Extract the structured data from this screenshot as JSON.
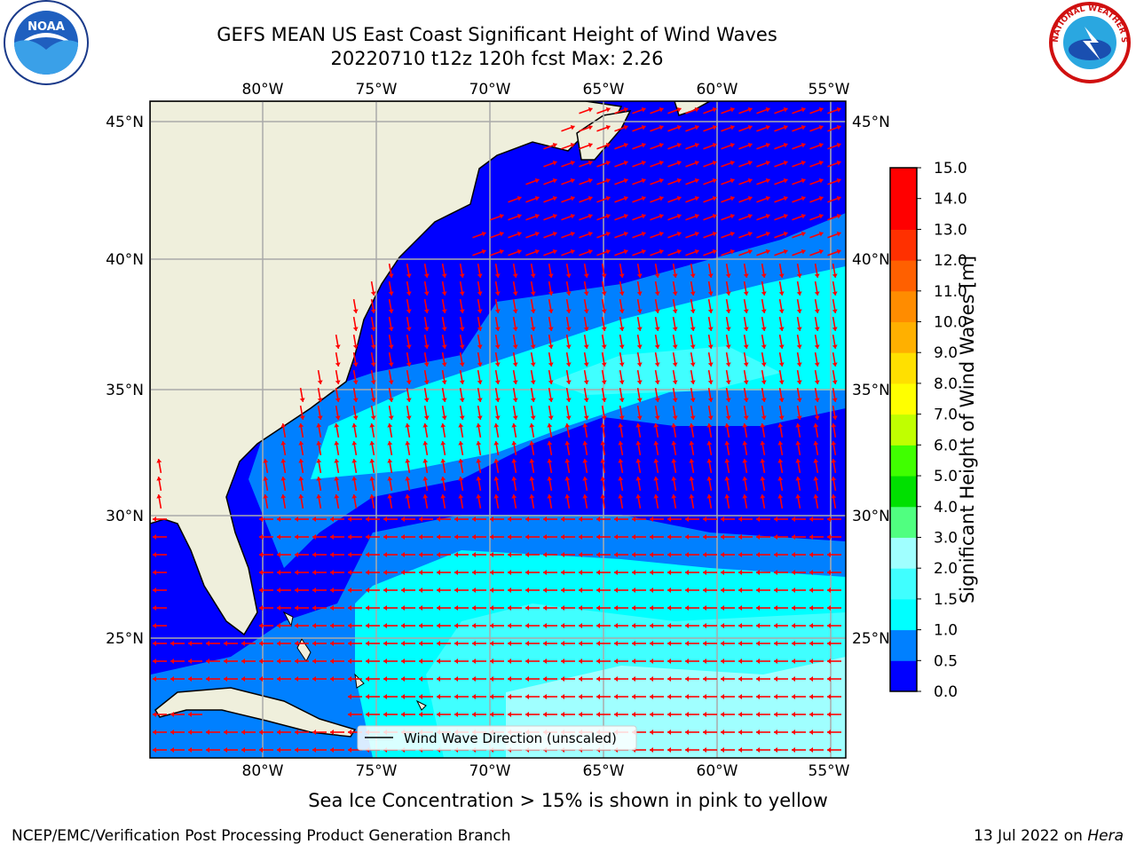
{
  "title_line1": "GEFS MEAN US East Coast Significant Height of Wind Waves",
  "title_line2": "20220710 t12z 120h fcst    Max: 2.26",
  "logos": {
    "left": "noaa-logo",
    "right": "national-weather-service-logo"
  },
  "logo_text": {
    "noaa": "NOAA",
    "nws": "NATIONAL WEATHER SERVICE"
  },
  "map": {
    "lon_ticks": [
      "80°W",
      "75°W",
      "70°W",
      "65°W",
      "60°W",
      "55°W"
    ],
    "lat_ticks": [
      "45°N",
      "40°N",
      "35°N",
      "30°N",
      "25°N"
    ],
    "lon_range": [
      -85,
      -54.5
    ],
    "lat_range": [
      20.5,
      46
    ],
    "grid": true,
    "land_color": "#efefdc",
    "legend_label": "Wind Wave Direction (unscaled)",
    "arrow_color": "#ff0000"
  },
  "colorbar": {
    "label": "Significant Height of Wind Waves [m]",
    "ticks": [
      "0.0",
      "0.5",
      "1.0",
      "1.5",
      "2.0",
      "3.0",
      "4.0",
      "5.0",
      "6.0",
      "7.0",
      "8.0",
      "9.0",
      "10.0",
      "11.0",
      "12.0",
      "13.0",
      "14.0",
      "15.0"
    ],
    "colors": [
      "#0000ff",
      "#0080ff",
      "#00ffff",
      "#40ffff",
      "#a0ffff",
      "#50ff80",
      "#00e000",
      "#40ff00",
      "#c0ff00",
      "#ffff00",
      "#ffe000",
      "#ffb000",
      "#ff8c00",
      "#ff6000",
      "#ff3000",
      "#ff0000",
      "#ff0000"
    ]
  },
  "ice_note": "Sea Ice Concentration > 15% is shown in pink to yellow",
  "credit": "NCEP/EMC/Verification Post Processing Product Generation Branch",
  "date_prefix": "13 Jul 2022 on ",
  "machine": "Hera"
}
